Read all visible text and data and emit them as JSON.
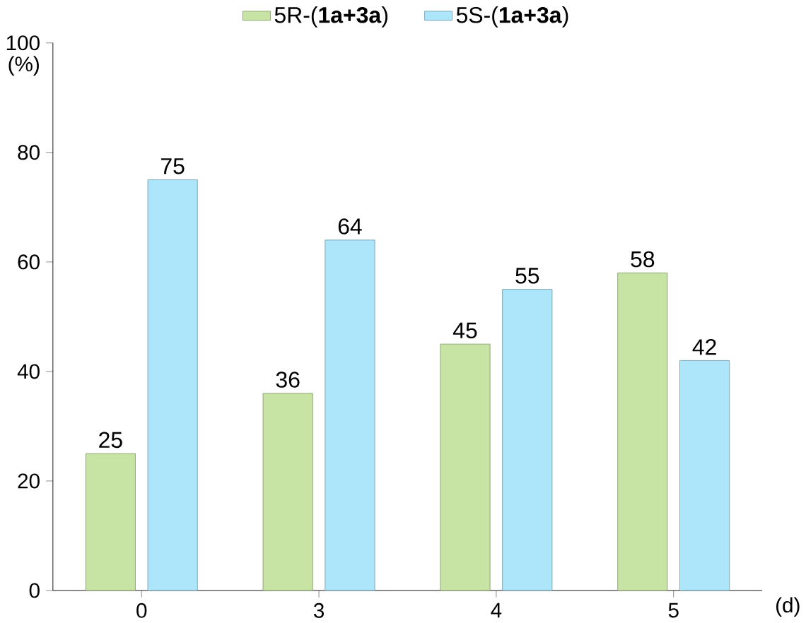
{
  "chart_data": {
    "type": "bar",
    "categories": [
      "0",
      "3",
      "4",
      "5"
    ],
    "series": [
      {
        "name": "5R-(**1a+3a**)",
        "color": "#c8e4a4",
        "values": [
          25,
          36,
          45,
          58
        ]
      },
      {
        "name": "5S-(**1a+3a**)",
        "color": "#ade6fa",
        "values": [
          75,
          64,
          55,
          42
        ]
      }
    ],
    "ylabel": "(%)",
    "xlabel": "(d)",
    "ylim": [
      0,
      100
    ],
    "yticks": [
      0,
      20,
      40,
      60,
      80,
      100
    ],
    "data_labels": true,
    "legend": "top",
    "grid": false
  }
}
